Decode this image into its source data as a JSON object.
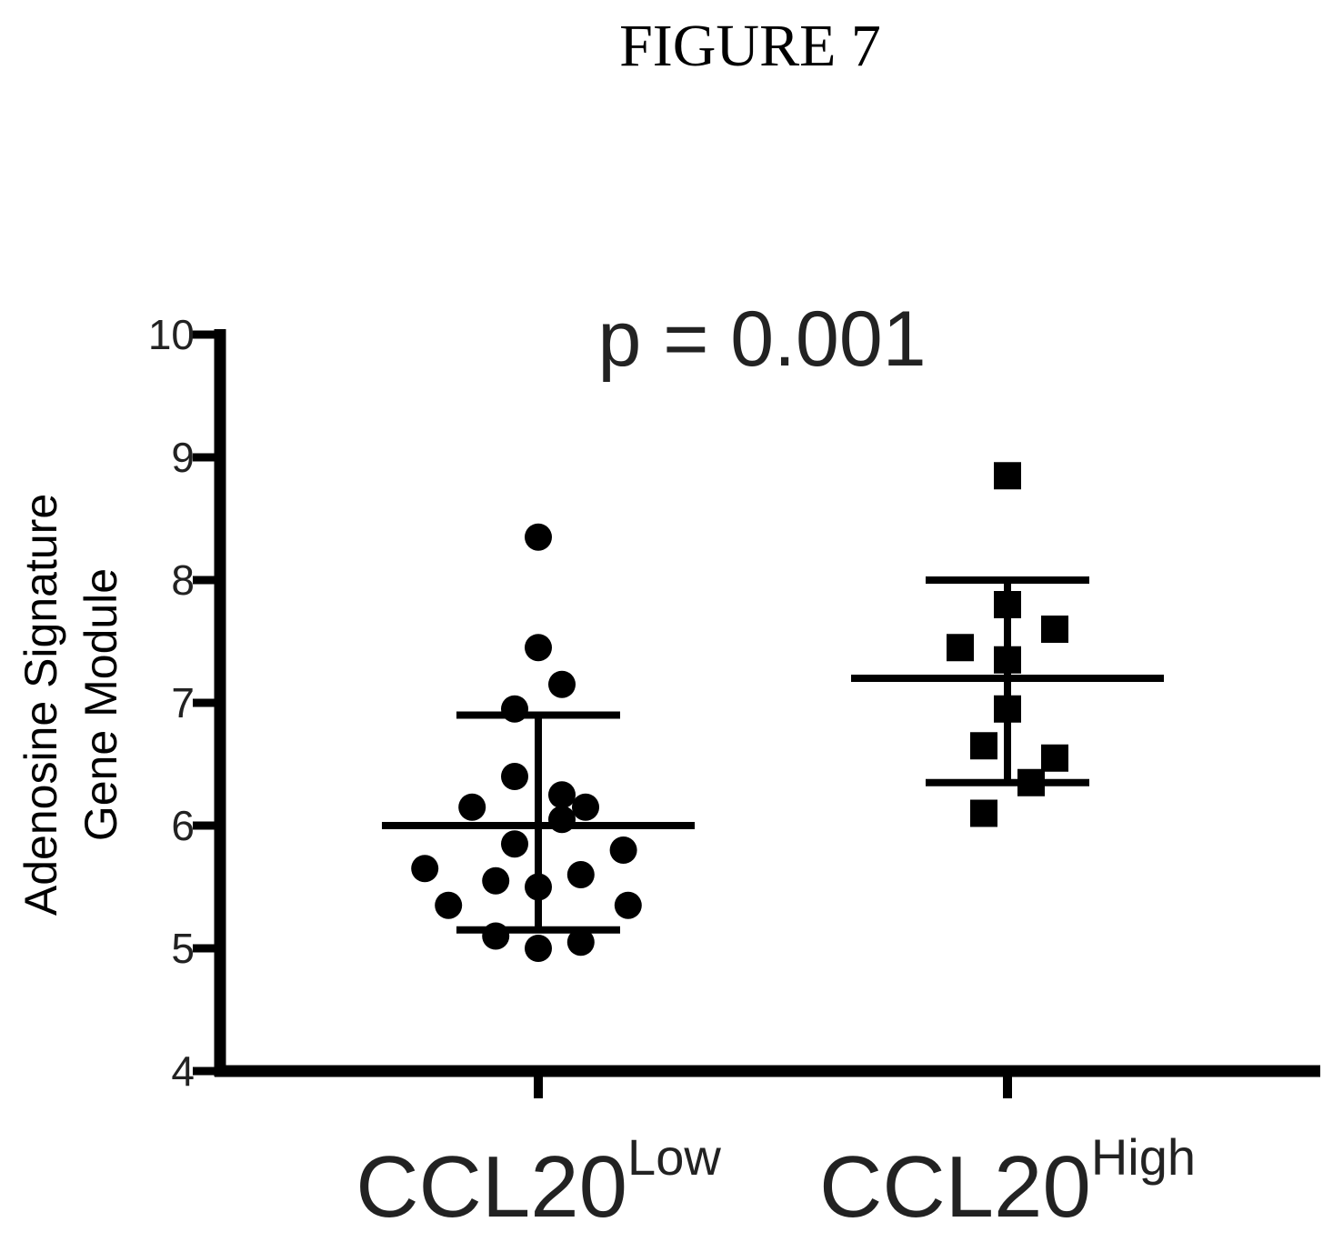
{
  "figure_title": "FIGURE 7",
  "colors": {
    "ink": "#000000",
    "background": "#ffffff"
  },
  "chart_data": {
    "type": "scatter",
    "annotation": "p = 0.001",
    "ylabel_lines": [
      "Adenosine Signature",
      "Gene Module"
    ],
    "xlabel": "",
    "ylim": [
      4,
      10
    ],
    "yticks": [
      4,
      5,
      6,
      7,
      8,
      9,
      10
    ],
    "categories": [
      {
        "base": "CCL20",
        "sup": "Low"
      },
      {
        "base": "CCL20",
        "sup": "High"
      }
    ],
    "series": [
      {
        "marker": "circle",
        "mean": 6.0,
        "sd_low": 5.15,
        "sd_high": 6.9,
        "points": [
          {
            "offset": 0.0,
            "y": 8.35
          },
          {
            "offset": 0.0,
            "y": 7.45
          },
          {
            "offset": 0.05,
            "y": 7.15
          },
          {
            "offset": -0.05,
            "y": 6.95
          },
          {
            "offset": -0.05,
            "y": 6.4
          },
          {
            "offset": -0.14,
            "y": 6.15
          },
          {
            "offset": 0.05,
            "y": 6.25
          },
          {
            "offset": 0.1,
            "y": 6.15
          },
          {
            "offset": 0.05,
            "y": 6.05
          },
          {
            "offset": -0.05,
            "y": 5.85
          },
          {
            "offset": 0.18,
            "y": 5.8
          },
          {
            "offset": -0.24,
            "y": 5.65
          },
          {
            "offset": -0.09,
            "y": 5.55
          },
          {
            "offset": 0.09,
            "y": 5.6
          },
          {
            "offset": 0.0,
            "y": 5.5
          },
          {
            "offset": -0.19,
            "y": 5.35
          },
          {
            "offset": 0.19,
            "y": 5.35
          },
          {
            "offset": -0.09,
            "y": 5.1
          },
          {
            "offset": 0.09,
            "y": 5.05
          },
          {
            "offset": 0.0,
            "y": 5.0
          }
        ]
      },
      {
        "marker": "square",
        "mean": 7.2,
        "sd_low": 6.35,
        "sd_high": 8.0,
        "points": [
          {
            "offset": 0.0,
            "y": 8.85
          },
          {
            "offset": 0.0,
            "y": 7.8
          },
          {
            "offset": 0.1,
            "y": 7.6
          },
          {
            "offset": -0.1,
            "y": 7.45
          },
          {
            "offset": 0.0,
            "y": 7.35
          },
          {
            "offset": 0.0,
            "y": 6.95
          },
          {
            "offset": -0.05,
            "y": 6.65
          },
          {
            "offset": 0.1,
            "y": 6.55
          },
          {
            "offset": 0.05,
            "y": 6.35
          },
          {
            "offset": -0.05,
            "y": 6.1
          }
        ]
      }
    ]
  }
}
